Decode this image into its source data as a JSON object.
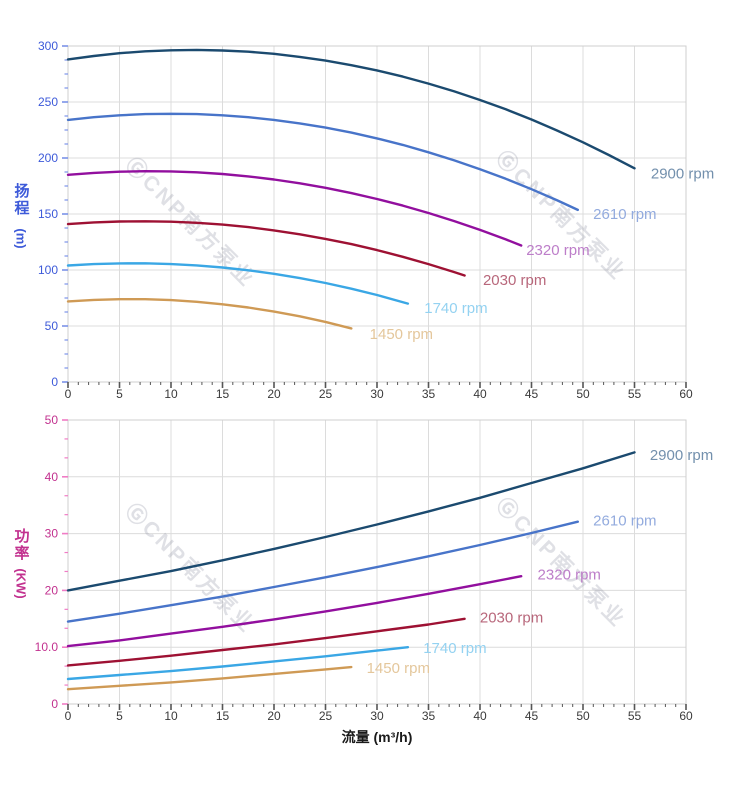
{
  "page": {
    "background": "#ffffff"
  },
  "watermark": {
    "text": "ⒼCNP南方泵业",
    "color": "rgba(128,132,152,0.25)"
  },
  "styles": {
    "grid_color": "#dcdcdc",
    "box_color": "#cfcfcf",
    "x_tick_color": "#555555",
    "x_label_color": "#3a3a3a"
  },
  "chart_data": [
    {
      "type": "line",
      "name": "head-chart",
      "title": "",
      "ylabel": "扬程 (m)",
      "ylabel_main": "扬程",
      "ylabel_unit": "(m)",
      "xlabel": "",
      "xlim": [
        0,
        60
      ],
      "ylim": [
        0,
        300
      ],
      "grid": true,
      "legend_position": "inline-right-of-curve-end",
      "x_tick_labels": [
        "0",
        "5",
        "10",
        "15",
        "20",
        "25",
        "30",
        "35",
        "40",
        "45",
        "50",
        "55",
        "60"
      ],
      "y_tick_labels": [
        "0",
        "50",
        "100",
        "150",
        "200",
        "250",
        "300"
      ],
      "x_minor_per_major": 4,
      "y_minor_per_major": 3,
      "axis_label_color": "#3d5ad9",
      "axis_tick_color": "#7b93e8",
      "series": [
        {
          "name": "2900 rpm",
          "color": "#1b4a6f",
          "label_color": "#7390ad",
          "label_at": [
            56.2,
            186
          ],
          "x": [
            0,
            2.5,
            5,
            7.5,
            10,
            12.5,
            15,
            17.5,
            20,
            22.5,
            25,
            27.5,
            30,
            32.5,
            35,
            37.5,
            40,
            42.5,
            45,
            47.5,
            50,
            52.5,
            55
          ],
          "y": [
            288,
            291.1,
            293.6,
            295.3,
            296.2,
            296.5,
            296,
            294.9,
            293,
            290.3,
            287,
            282.9,
            278.2,
            272.7,
            266.4,
            259.5,
            251.8,
            243.5,
            234.4,
            224.5,
            214,
            202.7,
            190.8
          ]
        },
        {
          "name": "2610 rpm",
          "color": "#4874c9",
          "label_color": "#93abde",
          "label_at": [
            50.6,
            150
          ],
          "x": [
            0,
            2.5,
            5,
            7.5,
            10,
            12.5,
            15,
            17.5,
            20,
            22.5,
            25,
            27.5,
            30,
            32.5,
            35,
            37.5,
            40,
            42.5,
            45,
            47.5,
            49.5
          ],
          "y": [
            234,
            236.4,
            238.1,
            239.2,
            239.5,
            239.2,
            238.1,
            236.4,
            234,
            230.9,
            227.1,
            222.7,
            217.5,
            211.7,
            205.1,
            197.9,
            190,
            181.4,
            172.1,
            162.1,
            153.7
          ]
        },
        {
          "name": "2320 rpm",
          "color": "#920f9e",
          "label_color": "#bd7ec9",
          "label_at": [
            44.1,
            118
          ],
          "x": [
            0,
            2.5,
            5,
            7.5,
            10,
            12.5,
            15,
            17.5,
            20,
            22.5,
            25,
            27.5,
            30,
            32.5,
            35,
            37.5,
            40,
            42.5,
            44
          ],
          "y": [
            185,
            186.7,
            187.8,
            188.2,
            188,
            187.2,
            185.7,
            183.6,
            180.8,
            177.4,
            173.4,
            168.7,
            163.4,
            157.5,
            150.9,
            143.7,
            135.8,
            127.3,
            121.9
          ]
        },
        {
          "name": "2030 rpm",
          "color": "#9e1133",
          "label_color": "#b8677b",
          "label_at": [
            39.9,
            91
          ],
          "x": [
            0,
            2.5,
            5,
            7.5,
            10,
            12.5,
            15,
            17.5,
            20,
            22.5,
            25,
            27.5,
            30,
            32.5,
            35,
            37.5,
            38.5
          ],
          "y": [
            141,
            142.5,
            143.3,
            143.5,
            143.1,
            142.1,
            140.5,
            138.3,
            135.4,
            131.9,
            127.8,
            123.1,
            117.8,
            111.8,
            105.3,
            98.1,
            95.1
          ]
        },
        {
          "name": "1740 rpm",
          "color": "#3aa7e5",
          "label_color": "#94d2f1",
          "label_at": [
            34.2,
            66
          ],
          "x": [
            0,
            2.5,
            5,
            7.5,
            10,
            12.5,
            15,
            17.5,
            20,
            22.5,
            25,
            27.5,
            30,
            33
          ],
          "y": [
            104,
            105.3,
            105.9,
            106,
            105.3,
            104.1,
            102.2,
            99.7,
            96.6,
            92.8,
            88.4,
            83.3,
            77.7,
            70
          ]
        },
        {
          "name": "1450 rpm",
          "color": "#cf9a55",
          "label_color": "#e4c79c",
          "label_at": [
            28.9,
            43
          ],
          "x": [
            0,
            2.5,
            5,
            7.5,
            10,
            12.5,
            15,
            17.5,
            20,
            22.5,
            25,
            27.5
          ],
          "y": [
            72,
            73.3,
            73.9,
            73.9,
            73.1,
            71.6,
            69.4,
            66.5,
            62.9,
            58.7,
            53.7,
            47.9
          ]
        }
      ]
    },
    {
      "type": "line",
      "name": "power-chart",
      "title": "",
      "ylabel": "功率 (KW)",
      "ylabel_main": "功率",
      "ylabel_unit": "(KW)",
      "xlabel": "流量 (m³/h)",
      "xlim": [
        0,
        60
      ],
      "ylim": [
        0,
        50
      ],
      "grid": true,
      "legend_position": "inline-right-of-curve-end",
      "x_tick_labels": [
        "0",
        "5",
        "10",
        "15",
        "20",
        "25",
        "30",
        "35",
        "40",
        "45",
        "50",
        "55",
        "60"
      ],
      "y_tick_labels": [
        "0",
        "10.0",
        "20",
        "30",
        "40",
        "50"
      ],
      "x_minor_per_major": 4,
      "y_minor_per_major": 2,
      "axis_label_color": "#c2318f",
      "axis_tick_color": "#f07cc5",
      "series": [
        {
          "name": "2900 rpm",
          "color": "#1b4a6f",
          "label_color": "#7390ad",
          "label_at": [
            56.1,
            43.8
          ],
          "x": [
            0,
            5,
            10,
            15,
            20,
            25,
            30,
            35,
            40,
            45,
            50,
            55
          ],
          "y": [
            20,
            21.7,
            23.4,
            25.3,
            27.3,
            29.4,
            31.6,
            33.9,
            36.3,
            38.9,
            41.5,
            44.3
          ]
        },
        {
          "name": "2610 rpm",
          "color": "#4874c9",
          "label_color": "#93abde",
          "label_at": [
            50.6,
            32.3
          ],
          "x": [
            0,
            5,
            10,
            15,
            20,
            25,
            30,
            35,
            40,
            45,
            49.5
          ],
          "y": [
            14.5,
            15.9,
            17.4,
            18.9,
            20.6,
            22.3,
            24.1,
            26,
            28,
            30.1,
            32.1
          ]
        },
        {
          "name": "2320 rpm",
          "color": "#920f9e",
          "label_color": "#bd7ec9",
          "label_at": [
            45.2,
            22.8
          ],
          "x": [
            0,
            5,
            10,
            15,
            20,
            25,
            30,
            35,
            40,
            44
          ],
          "y": [
            10.2,
            11.2,
            12.4,
            13.6,
            14.9,
            16.3,
            17.8,
            19.4,
            21.1,
            22.5
          ]
        },
        {
          "name": "2030 rpm",
          "color": "#9e1133",
          "label_color": "#b8677b",
          "label_at": [
            39.6,
            15.2
          ],
          "x": [
            0,
            5,
            10,
            15,
            20,
            25,
            30,
            35,
            38.5
          ],
          "y": [
            6.8,
            7.6,
            8.5,
            9.5,
            10.5,
            11.6,
            12.8,
            14,
            15
          ]
        },
        {
          "name": "1740 rpm",
          "color": "#3aa7e5",
          "label_color": "#94d2f1",
          "label_at": [
            34.1,
            9.9
          ],
          "x": [
            0,
            5,
            10,
            15,
            20,
            25,
            30,
            33
          ],
          "y": [
            4.4,
            5.1,
            5.8,
            6.6,
            7.5,
            8.4,
            9.4,
            10
          ]
        },
        {
          "name": "1450 rpm",
          "color": "#cf9a55",
          "label_color": "#e4c79c",
          "label_at": [
            28.6,
            6.3
          ],
          "x": [
            0,
            5,
            10,
            15,
            20,
            25,
            27.5
          ],
          "y": [
            2.6,
            3.2,
            3.8,
            4.5,
            5.3,
            6.1,
            6.5
          ]
        }
      ]
    }
  ]
}
